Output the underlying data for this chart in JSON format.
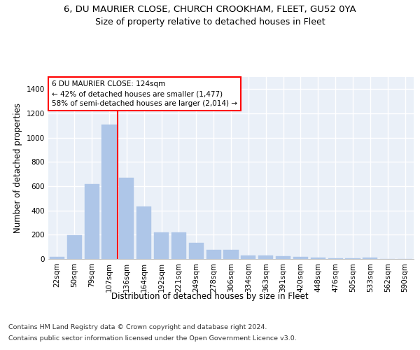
{
  "title_line1": "6, DU MAURIER CLOSE, CHURCH CROOKHAM, FLEET, GU52 0YA",
  "title_line2": "Size of property relative to detached houses in Fleet",
  "xlabel": "Distribution of detached houses by size in Fleet",
  "ylabel": "Number of detached properties",
  "categories": [
    "22sqm",
    "50sqm",
    "79sqm",
    "107sqm",
    "136sqm",
    "164sqm",
    "192sqm",
    "221sqm",
    "249sqm",
    "278sqm",
    "306sqm",
    "334sqm",
    "363sqm",
    "391sqm",
    "420sqm",
    "448sqm",
    "476sqm",
    "505sqm",
    "533sqm",
    "562sqm",
    "590sqm"
  ],
  "values": [
    20,
    195,
    615,
    1110,
    670,
    430,
    220,
    220,
    130,
    75,
    75,
    30,
    30,
    25,
    15,
    12,
    5,
    5,
    10,
    0,
    0
  ],
  "bar_color": "#aec6e8",
  "bar_edgecolor": "#aec6e8",
  "vline_color": "red",
  "vline_linewidth": 1.5,
  "vline_pos": 3.5,
  "annotation_box_text": "6 DU MAURIER CLOSE: 124sqm\n← 42% of detached houses are smaller (1,477)\n58% of semi-detached houses are larger (2,014) →",
  "ylim": [
    0,
    1500
  ],
  "yticks": [
    0,
    200,
    400,
    600,
    800,
    1000,
    1200,
    1400
  ],
  "bg_color": "#eaf0f8",
  "grid_color": "white",
  "footer_line1": "Contains HM Land Registry data © Crown copyright and database right 2024.",
  "footer_line2": "Contains public sector information licensed under the Open Government Licence v3.0.",
  "title_fontsize": 9.5,
  "subtitle_fontsize": 9,
  "axis_label_fontsize": 8.5,
  "tick_fontsize": 7.5,
  "annotation_fontsize": 7.5,
  "footer_fontsize": 6.8
}
